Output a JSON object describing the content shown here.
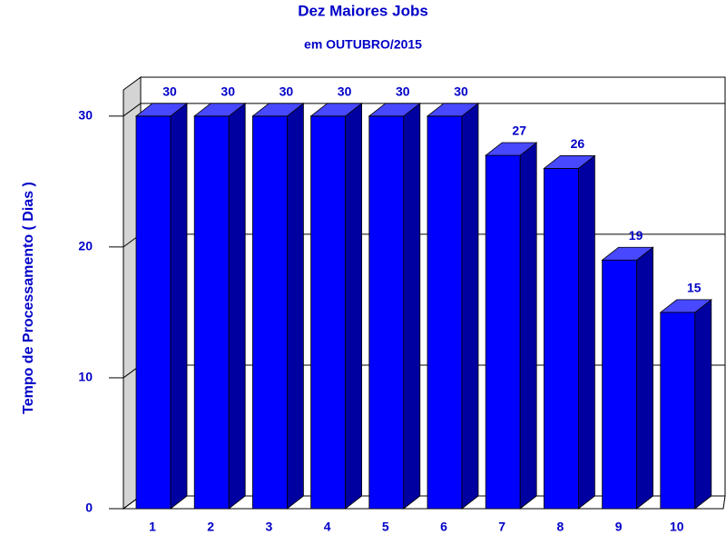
{
  "chart_data": {
    "type": "bar3d",
    "title": "Dez Maiores Jobs",
    "subtitle": "em OUTUBRO/2015",
    "y_label": "Tempo de Processamento ( Dias )",
    "categories": [
      "1",
      "2",
      "3",
      "4",
      "5",
      "6",
      "7",
      "8",
      "9",
      "10"
    ],
    "values": [
      30,
      30,
      30,
      30,
      30,
      30,
      27,
      26,
      19,
      15
    ],
    "color": "#0000ff",
    "ylim": [
      0,
      32
    ],
    "yticks": [
      0,
      10,
      20,
      30
    ],
    "grid": true
  }
}
